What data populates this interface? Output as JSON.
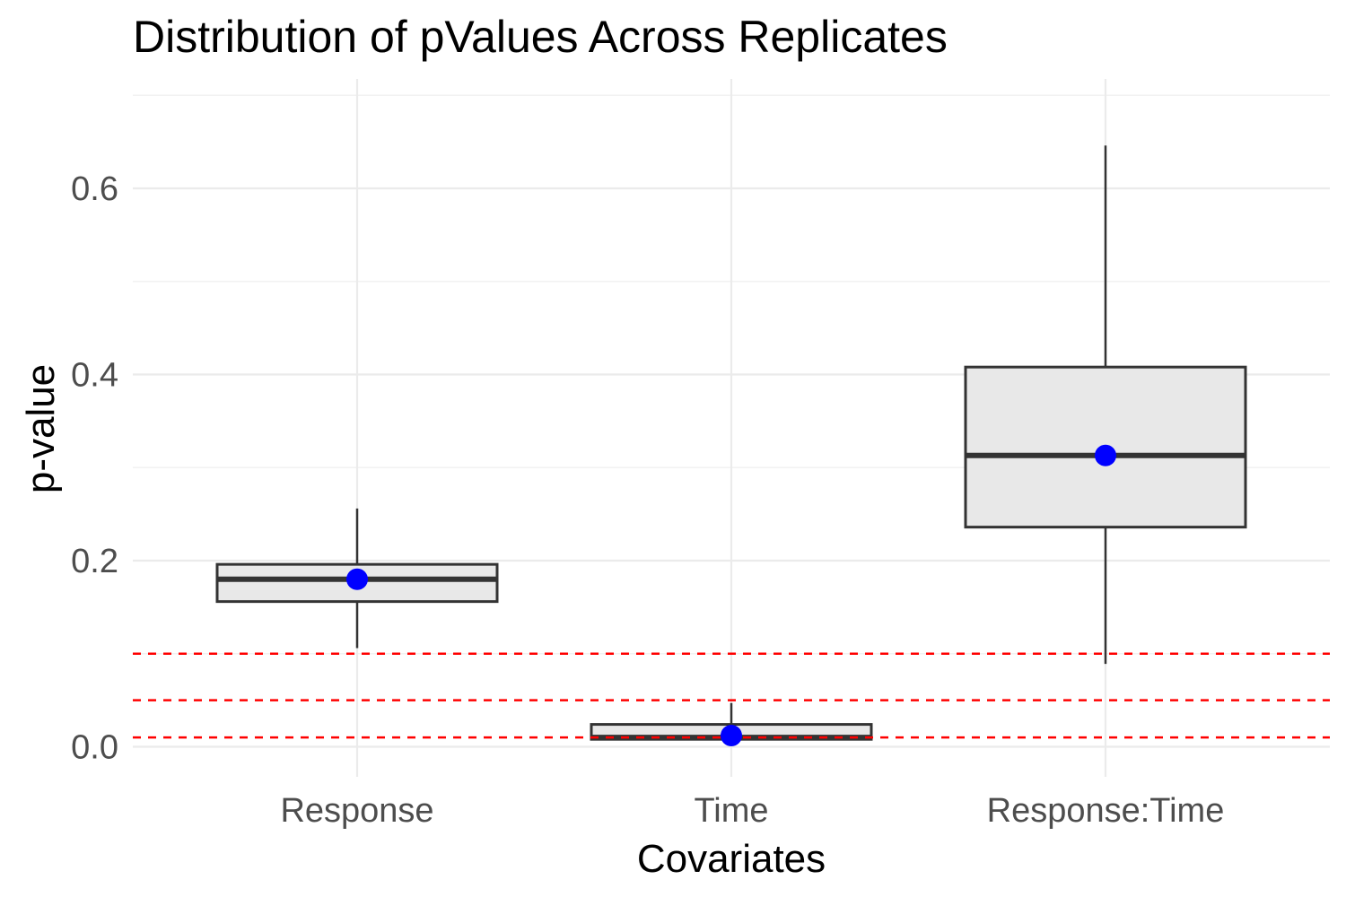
{
  "chart_data": {
    "type": "boxplot",
    "title": "Distribution of pValues Across Replicates",
    "xlabel": "Covariates",
    "ylabel": "p-value",
    "ylim": [
      -0.03,
      0.73
    ],
    "y_ticks": [
      0.0,
      0.2,
      0.4,
      0.6
    ],
    "y_tick_labels": [
      "0.0",
      "0.2",
      "0.4",
      "0.6"
    ],
    "y_minor_ticks": [
      0.1,
      0.3,
      0.5,
      0.7
    ],
    "categories": [
      "Response",
      "Time",
      "Response:Time"
    ],
    "boxes": [
      {
        "category": "Response",
        "whisker_low": 0.106,
        "q1": 0.156,
        "median": 0.18,
        "q3": 0.196,
        "whisker_high": 0.256,
        "mean": 0.18
      },
      {
        "category": "Time",
        "whisker_low": 0.008,
        "q1": 0.008,
        "median": 0.01,
        "q3": 0.024,
        "whisker_high": 0.047,
        "mean": 0.012
      },
      {
        "category": "Response:Time",
        "whisker_low": 0.089,
        "q1": 0.236,
        "median": 0.313,
        "q3": 0.408,
        "whisker_high": 0.646,
        "mean": 0.313
      }
    ],
    "reference_lines": [
      0.01,
      0.05,
      0.1
    ],
    "colors": {
      "box_fill": "#e8e8e8",
      "box_outline": "#333333",
      "mean_point": "#0000ff",
      "reference_line": "#ff0000"
    },
    "grid": true,
    "legend": "none"
  }
}
